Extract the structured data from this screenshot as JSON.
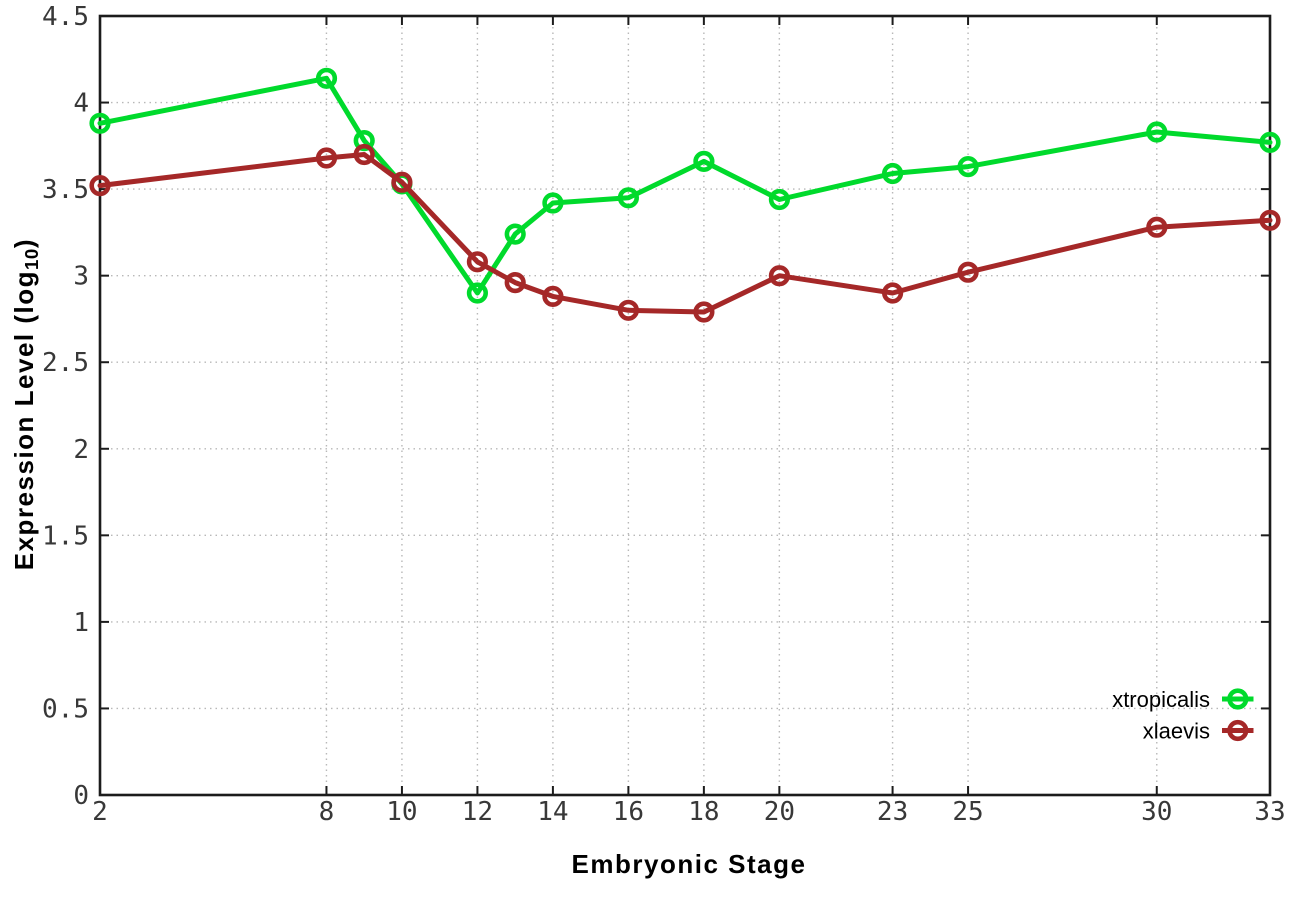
{
  "page": {
    "background": "#ffffff"
  },
  "chart_data": {
    "type": "line",
    "title": "",
    "xlabel": "Embryonic Stage",
    "ylabel": {
      "prefix": "Expression Level (log",
      "sub": "10",
      "suffix": ")"
    },
    "x": [
      2,
      8,
      9,
      10,
      12,
      13,
      14,
      16,
      18,
      20,
      23,
      25,
      30,
      33
    ],
    "series": [
      {
        "name": "xtropicalis",
        "color": "#00da2c",
        "values": [
          3.88,
          4.14,
          3.78,
          3.53,
          2.9,
          3.24,
          3.42,
          3.45,
          3.66,
          3.44,
          3.59,
          3.63,
          3.83,
          3.77
        ]
      },
      {
        "name": "xlaevis",
        "color": "#a52828",
        "values": [
          3.52,
          3.68,
          3.7,
          3.54,
          3.08,
          2.96,
          2.88,
          2.8,
          2.79,
          3.0,
          2.9,
          3.02,
          3.28,
          3.32
        ]
      }
    ],
    "xlim": [
      2,
      33
    ],
    "ylim": [
      0,
      4.5
    ],
    "x_ticks": [
      2,
      8,
      10,
      12,
      14,
      16,
      18,
      20,
      23,
      25,
      30,
      33
    ],
    "x_tick_labels": [
      "2",
      "8",
      "10",
      "12",
      "14",
      "16",
      "18",
      "20",
      "23",
      "25",
      "30",
      "33"
    ],
    "y_ticks": [
      0,
      0.5,
      1,
      1.5,
      2,
      2.5,
      3,
      3.5,
      4,
      4.5
    ],
    "y_tick_labels": [
      "0",
      "0.5",
      "1",
      "1.5",
      "2",
      "2.5",
      "3",
      "3.5",
      "4",
      "4.5"
    ],
    "grid": true,
    "legend_position": "bottom-right",
    "marker": "open-circle",
    "colors": {
      "axis": "#1c1c1c",
      "grid": "#b8b8b8",
      "tick_text": "#383838",
      "title_text": "#000000"
    }
  }
}
